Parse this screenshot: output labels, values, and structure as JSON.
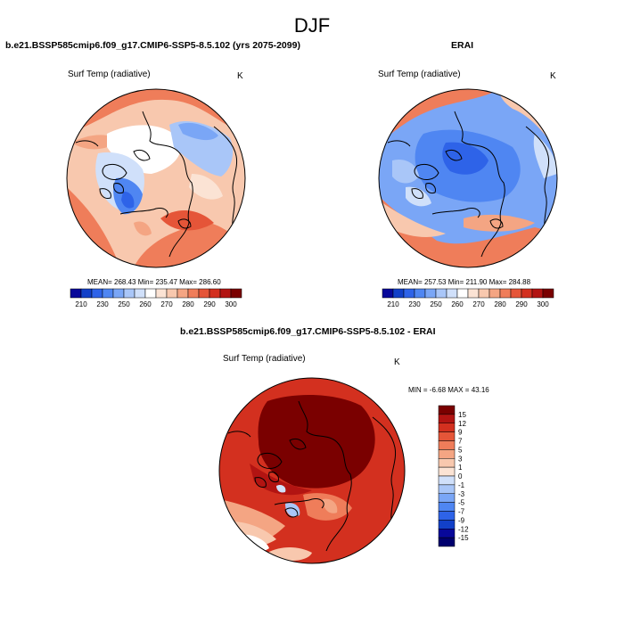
{
  "figure": {
    "season_title": "DJF",
    "palette_blue_red": [
      "#08089a",
      "#1240c8",
      "#2e63e8",
      "#4f86f2",
      "#7aa6f6",
      "#a9c6f8",
      "#d0e0fa",
      "#ffffff",
      "#fbe3d4",
      "#f8c8ae",
      "#f4a583",
      "#ef7d5a",
      "#e55538",
      "#d3301f",
      "#b21412",
      "#7a0000"
    ]
  },
  "chart_data": [
    {
      "type": "heatmap",
      "projection": "north-polar-stereographic",
      "title": "b.e21.BSSP585cmip6.f09_g17.CMIP6-SSP5-8.5.102 (yrs 2075-2099)",
      "left_label": "Surf Temp (radiative)",
      "right_label": "K",
      "stats": {
        "text": "MEAN= 268.43   Min= 235.47   Max= 286.60",
        "mean": 268.43,
        "min": 235.47,
        "max": 286.6
      },
      "colorbar": {
        "orientation": "horizontal",
        "tick_labels": [
          "210",
          "230",
          "250",
          "260",
          "270",
          "280",
          "290",
          "300"
        ]
      }
    },
    {
      "type": "heatmap",
      "projection": "north-polar-stereographic",
      "title": "ERAI",
      "left_label": "Surf Temp (radiative)",
      "right_label": "K",
      "stats": {
        "text": "MEAN= 257.53   Min= 211.90   Max= 284.88",
        "mean": 257.53,
        "min": 211.9,
        "max": 284.88
      },
      "colorbar": {
        "orientation": "horizontal",
        "tick_labels": [
          "210",
          "230",
          "250",
          "260",
          "270",
          "280",
          "290",
          "300"
        ]
      }
    },
    {
      "type": "heatmap",
      "projection": "north-polar-stereographic",
      "title": "b.e21.BSSP585cmip6.f09_g17.CMIP6-SSP5-8.5.102 - ERAI",
      "left_label": "Surf Temp (radiative)",
      "right_label": "K",
      "stats": {
        "text": "MIN =  -6.68  MAX =  43.16",
        "min": -6.68,
        "max": 43.16
      },
      "colorbar": {
        "orientation": "vertical",
        "tick_labels": [
          "15",
          "12",
          "9",
          "7",
          "5",
          "3",
          "1",
          "0",
          "-1",
          "-3",
          "-5",
          "-7",
          "-9",
          "-12",
          "-15"
        ]
      }
    }
  ]
}
